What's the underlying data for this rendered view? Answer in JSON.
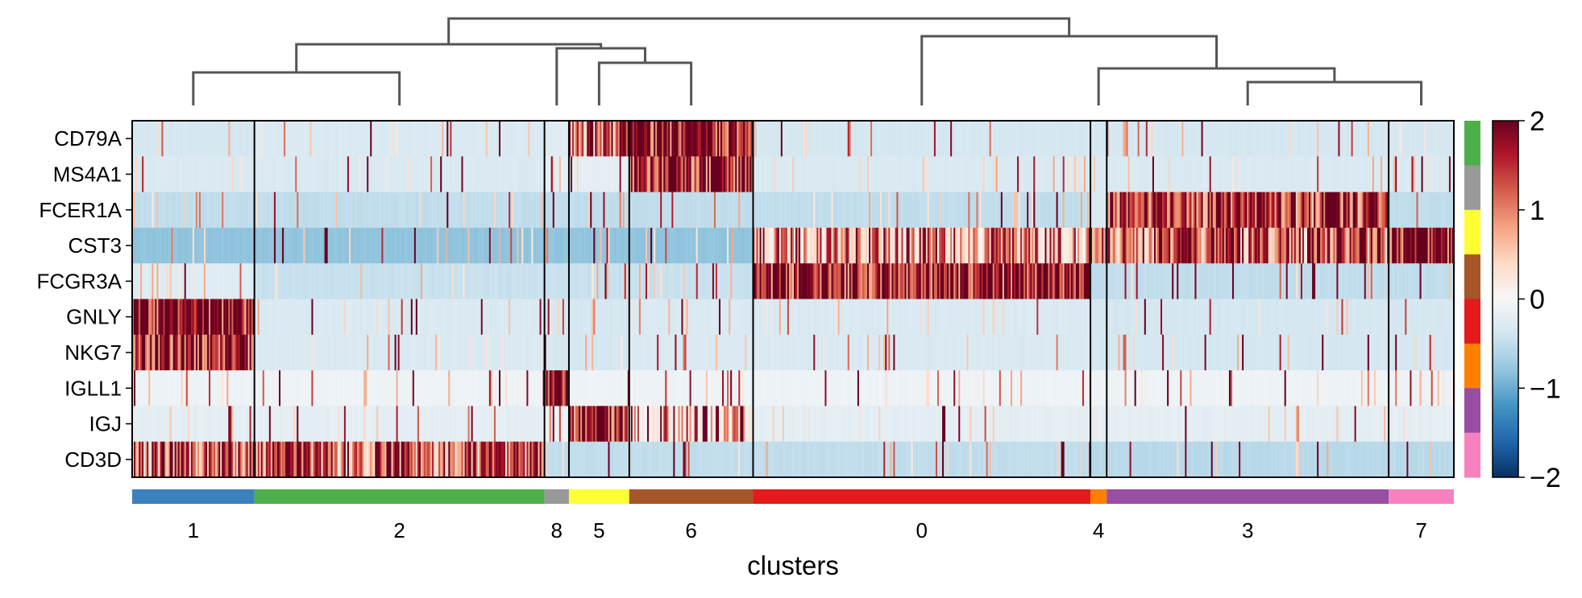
{
  "chart_data": {
    "type": "heatmap",
    "genes": [
      "CD79A",
      "MS4A1",
      "FCER1A",
      "CST3",
      "FCGR3A",
      "GNLY",
      "NKG7",
      "IGLL1",
      "IGJ",
      "CD3D"
    ],
    "clusters": [
      {
        "label": "1",
        "cells": 75,
        "color": "#3b81bd"
      },
      {
        "label": "2",
        "cells": 178,
        "color": "#4daf4a"
      },
      {
        "label": "8",
        "cells": 15,
        "color": "#999999"
      },
      {
        "label": "5",
        "cells": 37,
        "color": "#ffff33"
      },
      {
        "label": "6",
        "cells": 76,
        "color": "#a65628"
      },
      {
        "label": "0",
        "cells": 207,
        "color": "#e41a1c"
      },
      {
        "label": "4",
        "cells": 10,
        "color": "#ff7f00"
      },
      {
        "label": "3",
        "cells": 173,
        "color": "#984ea3"
      },
      {
        "label": "7",
        "cells": 40,
        "color": "#f781bf"
      }
    ],
    "mean_expression": [
      {
        "cluster": "1",
        "values": [
          -0.35,
          -0.3,
          -0.5,
          -0.8,
          -0.25,
          1.8,
          1.6,
          -0.1,
          -0.2,
          1.2
        ]
      },
      {
        "cluster": "2",
        "values": [
          -0.3,
          -0.3,
          -0.5,
          -0.8,
          -0.45,
          -0.3,
          -0.3,
          -0.1,
          -0.2,
          1.3
        ]
      },
      {
        "cluster": "8",
        "values": [
          -0.25,
          -0.2,
          -0.5,
          -0.8,
          -0.45,
          -0.35,
          -0.35,
          1.8,
          -0.1,
          -0.5
        ]
      },
      {
        "cluster": "5",
        "values": [
          1.2,
          -0.2,
          -0.5,
          -0.8,
          -0.45,
          -0.35,
          -0.35,
          -0.1,
          1.7,
          -0.5
        ]
      },
      {
        "cluster": "6",
        "values": [
          1.8,
          1.7,
          -0.5,
          -0.8,
          -0.45,
          -0.3,
          -0.3,
          -0.1,
          0.2,
          -0.5
        ]
      },
      {
        "cluster": "0",
        "values": [
          -0.35,
          -0.3,
          -0.5,
          0.4,
          1.7,
          -0.3,
          -0.3,
          -0.1,
          -0.2,
          -0.5
        ]
      },
      {
        "cluster": "4",
        "values": [
          -0.35,
          -0.3,
          -0.3,
          0.8,
          -0.5,
          -0.35,
          -0.35,
          -0.1,
          -0.2,
          -0.55
        ]
      },
      {
        "cluster": "3",
        "values": [
          -0.35,
          -0.3,
          1.6,
          1.3,
          -0.5,
          -0.35,
          -0.35,
          -0.1,
          -0.2,
          -0.55
        ]
      },
      {
        "cluster": "7",
        "values": [
          -0.35,
          -0.3,
          -0.5,
          1.8,
          -0.5,
          -0.35,
          -0.35,
          -0.1,
          -0.2,
          -0.55
        ]
      }
    ],
    "dendrogram_links": [
      [
        "1",
        "2"
      ],
      [
        "5",
        "6"
      ],
      [
        "8",
        "5,6"
      ],
      [
        "1,2",
        "8,5,6"
      ],
      [
        "3",
        "7"
      ],
      [
        "4",
        "3,7"
      ],
      [
        "0",
        "4,3,7"
      ],
      [
        "1,2,8,5,6",
        "0,4,3,7"
      ]
    ],
    "xlabel": "clusters",
    "colorbar": {
      "min": -2,
      "max": 2,
      "ticks": [
        "2",
        "1",
        "0",
        "−1",
        "−2"
      ],
      "colormap": "RdBu_r"
    }
  }
}
